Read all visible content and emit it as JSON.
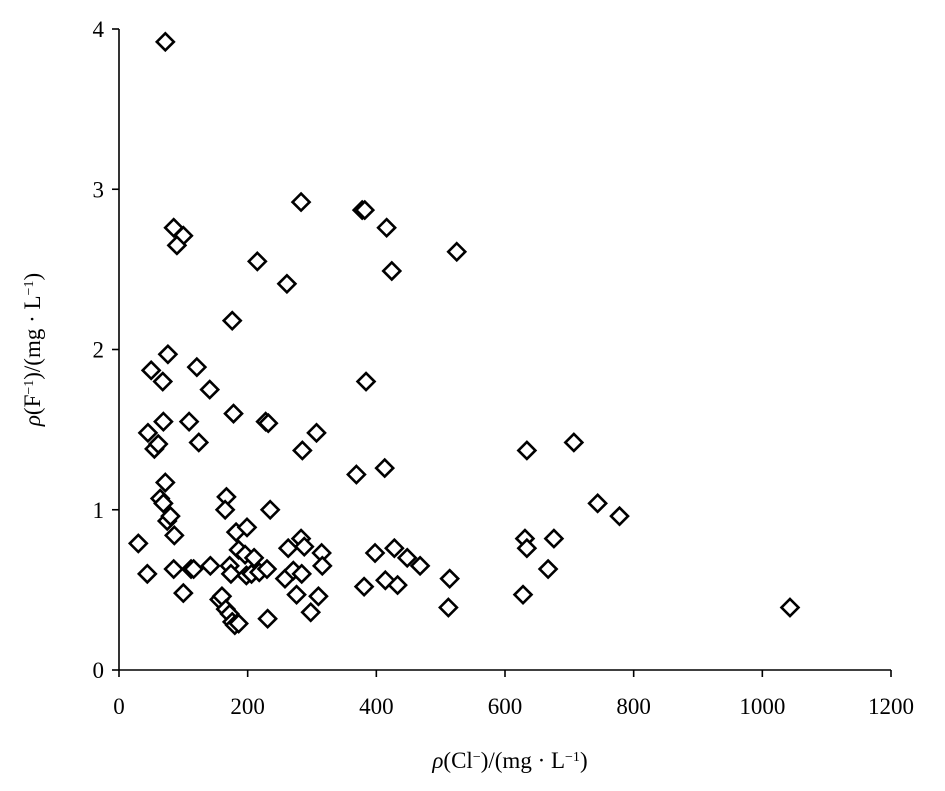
{
  "chart_data": {
    "type": "scatter",
    "title": "",
    "xlabel_parts": [
      "ρ",
      "(Cl",
      "−",
      ")/(mg · L",
      "−1",
      ")"
    ],
    "ylabel_parts": [
      "ρ",
      "(F",
      "−1",
      ")/(mg · L",
      "−1",
      ")"
    ],
    "xlim": [
      0,
      1200
    ],
    "ylim": [
      0,
      4
    ],
    "xticks": [
      "0",
      "200",
      "400",
      "600",
      "800",
      "1000",
      "1200"
    ],
    "yticks": [
      "0",
      "1",
      "2",
      "3",
      "4"
    ],
    "grid": false,
    "legend": "none",
    "marker": "diamond",
    "points": [
      [
        72,
        3.92
      ],
      [
        85,
        2.76
      ],
      [
        100,
        2.71
      ],
      [
        90,
        2.65
      ],
      [
        283,
        2.92
      ],
      [
        378,
        2.87
      ],
      [
        382,
        2.87
      ],
      [
        416,
        2.76
      ],
      [
        424,
        2.49
      ],
      [
        525,
        2.61
      ],
      [
        215,
        2.55
      ],
      [
        261,
        2.41
      ],
      [
        176,
        2.18
      ],
      [
        76,
        1.97
      ],
      [
        50,
        1.87
      ],
      [
        68,
        1.8
      ],
      [
        121,
        1.89
      ],
      [
        141,
        1.75
      ],
      [
        384,
        1.8
      ],
      [
        178,
        1.6
      ],
      [
        228,
        1.55
      ],
      [
        232,
        1.54
      ],
      [
        69,
        1.55
      ],
      [
        109,
        1.55
      ],
      [
        45,
        1.48
      ],
      [
        55,
        1.38
      ],
      [
        61,
        1.41
      ],
      [
        124,
        1.42
      ],
      [
        307,
        1.48
      ],
      [
        285,
        1.37
      ],
      [
        369,
        1.22
      ],
      [
        413,
        1.26
      ],
      [
        634,
        1.37
      ],
      [
        707,
        1.42
      ],
      [
        72,
        1.17
      ],
      [
        64,
        1.07
      ],
      [
        69,
        1.04
      ],
      [
        75,
        0.93
      ],
      [
        80,
        0.96
      ],
      [
        86,
        0.84
      ],
      [
        167,
        1.08
      ],
      [
        165,
        1.0
      ],
      [
        235,
        1.0
      ],
      [
        182,
        0.86
      ],
      [
        199,
        0.89
      ],
      [
        186,
        0.75
      ],
      [
        196,
        0.72
      ],
      [
        210,
        0.7
      ],
      [
        263,
        0.76
      ],
      [
        283,
        0.82
      ],
      [
        288,
        0.77
      ],
      [
        315,
        0.73
      ],
      [
        398,
        0.73
      ],
      [
        428,
        0.76
      ],
      [
        448,
        0.7
      ],
      [
        468,
        0.65
      ],
      [
        744,
        1.04
      ],
      [
        778,
        0.96
      ],
      [
        631,
        0.82
      ],
      [
        634,
        0.76
      ],
      [
        676,
        0.82
      ],
      [
        667,
        0.63
      ],
      [
        30,
        0.79
      ],
      [
        44,
        0.6
      ],
      [
        85,
        0.63
      ],
      [
        112,
        0.63
      ],
      [
        116,
        0.63
      ],
      [
        142,
        0.65
      ],
      [
        172,
        0.65
      ],
      [
        174,
        0.6
      ],
      [
        198,
        0.59
      ],
      [
        206,
        0.6
      ],
      [
        218,
        0.61
      ],
      [
        230,
        0.63
      ],
      [
        258,
        0.57
      ],
      [
        271,
        0.62
      ],
      [
        284,
        0.6
      ],
      [
        316,
        0.65
      ],
      [
        381,
        0.52
      ],
      [
        414,
        0.56
      ],
      [
        433,
        0.53
      ],
      [
        514,
        0.57
      ],
      [
        100,
        0.48
      ],
      [
        156,
        0.44
      ],
      [
        160,
        0.46
      ],
      [
        166,
        0.38
      ],
      [
        276,
        0.47
      ],
      [
        310,
        0.46
      ],
      [
        172,
        0.35
      ],
      [
        176,
        0.3
      ],
      [
        180,
        0.28
      ],
      [
        186,
        0.29
      ],
      [
        231,
        0.32
      ],
      [
        298,
        0.36
      ],
      [
        512,
        0.39
      ],
      [
        628,
        0.47
      ],
      [
        1043,
        0.39
      ]
    ]
  }
}
